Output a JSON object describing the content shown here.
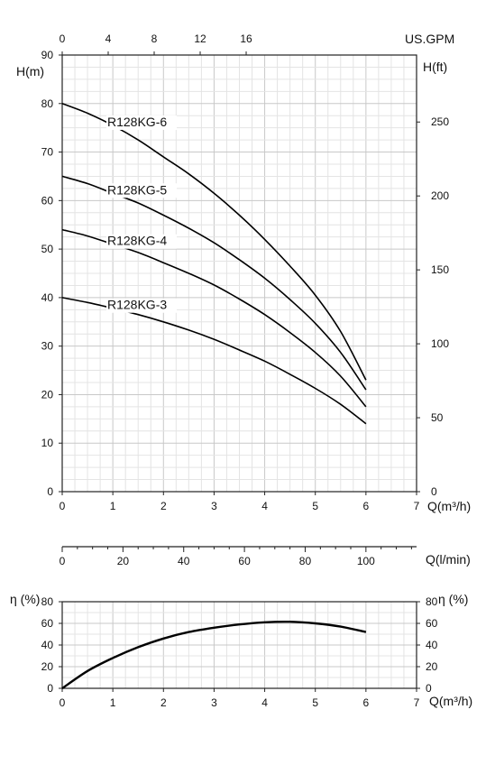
{
  "chart_data": [
    {
      "type": "line",
      "name": "head_curve",
      "x_bottom": {
        "label": "Q(m³/h)",
        "ticks": [
          "0",
          "1",
          "2",
          "3",
          "4",
          "5",
          "6",
          "7"
        ],
        "range": [
          0,
          7
        ]
      },
      "x_top": {
        "label": "US.GPM",
        "ticks": [
          "0",
          "4",
          "8",
          "12",
          "16"
        ],
        "range": [
          0,
          30.82
        ]
      },
      "y_left": {
        "label": "H(m)",
        "ticks": [
          "0",
          "10",
          "20",
          "30",
          "40",
          "50",
          "60",
          "70",
          "80",
          "90"
        ],
        "range": [
          0,
          90
        ]
      },
      "y_right": {
        "label": "H(ft)",
        "ticks": [
          "0",
          "50",
          "100",
          "150",
          "200",
          "250"
        ],
        "range": [
          0,
          295.3
        ]
      },
      "grid": true,
      "series": [
        {
          "name": "R128KG-6",
          "x": [
            0,
            0.5,
            1,
            1.5,
            2,
            2.5,
            3,
            3.5,
            4,
            4.5,
            5,
            5.5,
            6
          ],
          "y": [
            80,
            78,
            75.5,
            72.5,
            69,
            65.5,
            61.5,
            57,
            52,
            46.5,
            40.5,
            33,
            23
          ]
        },
        {
          "name": "R128KG-5",
          "x": [
            0,
            0.5,
            1,
            1.5,
            2,
            2.5,
            3,
            3.5,
            4,
            4.5,
            5,
            5.5,
            6
          ],
          "y": [
            65,
            63.5,
            61.5,
            59.5,
            57,
            54.3,
            51.3,
            47.8,
            44,
            39.6,
            34.7,
            28.7,
            21
          ]
        },
        {
          "name": "R128KG-4",
          "x": [
            0,
            0.5,
            1,
            1.5,
            2,
            2.5,
            3,
            3.5,
            4,
            4.5,
            5,
            5.5,
            6
          ],
          "y": [
            54,
            52.7,
            51,
            49.3,
            47.2,
            45,
            42.6,
            39.7,
            36.5,
            32.8,
            28.7,
            23.8,
            17.5
          ]
        },
        {
          "name": "R128KG-3",
          "x": [
            0,
            0.5,
            1,
            1.5,
            2,
            2.5,
            3,
            3.5,
            4,
            4.5,
            5,
            5.5,
            6
          ],
          "y": [
            40,
            39,
            37.8,
            36.5,
            35,
            33.3,
            31.4,
            29.2,
            26.9,
            24.2,
            21.3,
            18,
            14
          ]
        }
      ]
    },
    {
      "type": "line",
      "name": "flow_axis",
      "x": {
        "label": "Q(l/min)",
        "ticks": [
          "0",
          "20",
          "40",
          "60",
          "80",
          "100"
        ],
        "range": [
          0,
          116.67
        ]
      }
    },
    {
      "type": "line",
      "name": "efficiency_curve",
      "x": {
        "label": "Q(m³/h)",
        "ticks": [
          "0",
          "1",
          "2",
          "3",
          "4",
          "5",
          "6",
          "7"
        ],
        "range": [
          0,
          7
        ]
      },
      "y_left": {
        "label": "η (%)",
        "ticks": [
          "0",
          "20",
          "40",
          "60",
          "80"
        ],
        "range": [
          0,
          80
        ]
      },
      "y_right": {
        "label": "η (%)",
        "ticks": [
          "0",
          "20",
          "40",
          "60",
          "80"
        ],
        "range": [
          0,
          80
        ]
      },
      "grid": true,
      "series": [
        {
          "x": [
            0,
            0.5,
            1,
            1.5,
            2,
            2.5,
            3,
            3.5,
            4,
            4.5,
            5,
            5.5,
            6
          ],
          "y": [
            0,
            16,
            28,
            38,
            46,
            52,
            56,
            59,
            61,
            61.5,
            60,
            57,
            52
          ]
        }
      ]
    }
  ]
}
